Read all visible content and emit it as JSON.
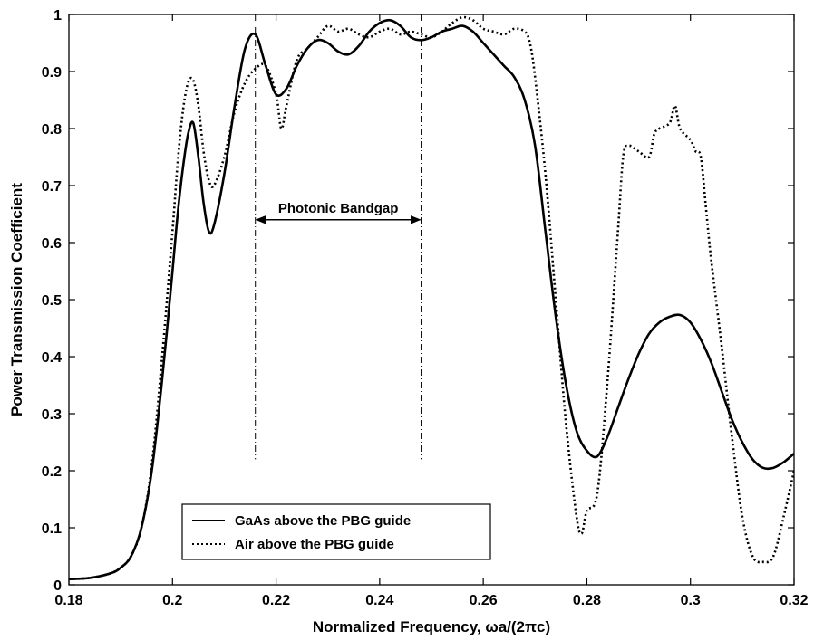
{
  "chart_data": {
    "type": "line",
    "xlabel": "Normalized Frequency, ωa/(2πc)",
    "ylabel": "Power Transmission Coefficient",
    "xlim": [
      0.18,
      0.32
    ],
    "ylim": [
      0,
      1
    ],
    "xticks": [
      0.18,
      0.2,
      0.22,
      0.24,
      0.26,
      0.28,
      0.3,
      0.32
    ],
    "xtick_labels": [
      "0.18",
      "0.2",
      "0.22",
      "0.24",
      "0.26",
      "0.28",
      "0.3",
      "0.32"
    ],
    "yticks": [
      0,
      0.1,
      0.2,
      0.3,
      0.4,
      0.5,
      0.6,
      0.7,
      0.8,
      0.9,
      1
    ],
    "ytick_labels": [
      "0",
      "0.1",
      "0.2",
      "0.3",
      "0.4",
      "0.5",
      "0.6",
      "0.7",
      "0.8",
      "0.9",
      "1"
    ],
    "grid": false,
    "legend_position": "bottom-left",
    "series": [
      {
        "name": "GaAs above the PBG guide",
        "style": "solid",
        "color": "#000000",
        "x": [
          0.18,
          0.184,
          0.188,
          0.19,
          0.192,
          0.194,
          0.196,
          0.198,
          0.2,
          0.201,
          0.202,
          0.203,
          0.204,
          0.205,
          0.206,
          0.207,
          0.208,
          0.21,
          0.212,
          0.214,
          0.216,
          0.218,
          0.22,
          0.222,
          0.224,
          0.226,
          0.228,
          0.23,
          0.232,
          0.234,
          0.236,
          0.238,
          0.24,
          0.242,
          0.244,
          0.246,
          0.248,
          0.25,
          0.252,
          0.254,
          0.256,
          0.258,
          0.26,
          0.262,
          0.264,
          0.266,
          0.268,
          0.27,
          0.272,
          0.274,
          0.276,
          0.278,
          0.28,
          0.282,
          0.284,
          0.286,
          0.288,
          0.29,
          0.292,
          0.294,
          0.296,
          0.298,
          0.3,
          0.302,
          0.304,
          0.306,
          0.308,
          0.31,
          0.312,
          0.314,
          0.316,
          0.318,
          0.32
        ],
        "y": [
          0.01,
          0.012,
          0.02,
          0.03,
          0.05,
          0.1,
          0.2,
          0.36,
          0.55,
          0.65,
          0.73,
          0.79,
          0.81,
          0.75,
          0.67,
          0.62,
          0.63,
          0.72,
          0.84,
          0.94,
          0.965,
          0.91,
          0.86,
          0.87,
          0.91,
          0.94,
          0.955,
          0.95,
          0.935,
          0.93,
          0.945,
          0.97,
          0.985,
          0.99,
          0.98,
          0.96,
          0.955,
          0.96,
          0.97,
          0.975,
          0.98,
          0.97,
          0.95,
          0.93,
          0.91,
          0.89,
          0.85,
          0.77,
          0.62,
          0.47,
          0.35,
          0.27,
          0.235,
          0.225,
          0.26,
          0.31,
          0.36,
          0.405,
          0.44,
          0.46,
          0.47,
          0.473,
          0.46,
          0.43,
          0.39,
          0.34,
          0.29,
          0.25,
          0.22,
          0.205,
          0.205,
          0.215,
          0.23
        ]
      },
      {
        "name": "Air above the PBG guide",
        "style": "dotted",
        "color": "#000000",
        "x": [
          0.18,
          0.184,
          0.188,
          0.19,
          0.192,
          0.194,
          0.196,
          0.198,
          0.2,
          0.201,
          0.202,
          0.203,
          0.204,
          0.205,
          0.206,
          0.207,
          0.208,
          0.21,
          0.212,
          0.214,
          0.216,
          0.218,
          0.22,
          0.221,
          0.222,
          0.224,
          0.226,
          0.228,
          0.23,
          0.232,
          0.234,
          0.236,
          0.238,
          0.24,
          0.242,
          0.244,
          0.246,
          0.248,
          0.25,
          0.252,
          0.254,
          0.256,
          0.258,
          0.26,
          0.262,
          0.264,
          0.266,
          0.268,
          0.269,
          0.27,
          0.272,
          0.274,
          0.276,
          0.278,
          0.279,
          0.28,
          0.282,
          0.284,
          0.286,
          0.287,
          0.288,
          0.29,
          0.292,
          0.293,
          0.294,
          0.296,
          0.297,
          0.298,
          0.3,
          0.301,
          0.302,
          0.303,
          0.304,
          0.306,
          0.308,
          0.31,
          0.312,
          0.314,
          0.316,
          0.318,
          0.32
        ],
        "y": [
          0.01,
          0.012,
          0.02,
          0.03,
          0.05,
          0.1,
          0.21,
          0.4,
          0.62,
          0.74,
          0.83,
          0.88,
          0.885,
          0.84,
          0.76,
          0.71,
          0.7,
          0.75,
          0.83,
          0.88,
          0.905,
          0.91,
          0.86,
          0.8,
          0.84,
          0.92,
          0.94,
          0.96,
          0.98,
          0.97,
          0.975,
          0.965,
          0.96,
          0.97,
          0.975,
          0.965,
          0.97,
          0.965,
          0.96,
          0.97,
          0.985,
          0.995,
          0.99,
          0.975,
          0.97,
          0.965,
          0.975,
          0.97,
          0.95,
          0.89,
          0.72,
          0.5,
          0.28,
          0.12,
          0.09,
          0.13,
          0.16,
          0.36,
          0.62,
          0.75,
          0.77,
          0.76,
          0.75,
          0.79,
          0.8,
          0.81,
          0.84,
          0.8,
          0.78,
          0.76,
          0.75,
          0.66,
          0.57,
          0.42,
          0.26,
          0.12,
          0.05,
          0.04,
          0.05,
          0.12,
          0.2
        ]
      }
    ],
    "annotations": {
      "bandgap_label": "Photonic Bandgap",
      "bandgap_x_start": 0.216,
      "bandgap_x_end": 0.248,
      "bandgap_arrow_y": 0.64,
      "bandgap_label_y": 0.66,
      "vline_y_bottom": 0.22,
      "vline_y_top": 1.0
    }
  }
}
